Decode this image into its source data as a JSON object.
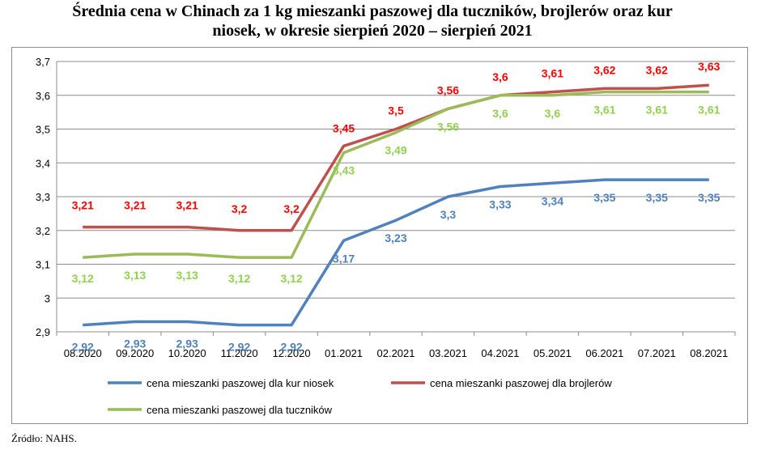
{
  "title_line1": "Średnia cena w Chinach za 1 kg mieszanki paszowej dla tuczników, brojlerów oraz kur",
  "title_line2": "niosek, w okresie sierpień 2020 – sierpień 2021",
  "source": "Źródło: NAHS.",
  "chart_data": {
    "type": "line",
    "categories": [
      "08.2020",
      "09.2020",
      "10.2020",
      "11.2020",
      "12.2020",
      "01.2021",
      "02.2021",
      "03.2021",
      "04.2021",
      "05.2021",
      "06.2021",
      "07.2021",
      "08.2021"
    ],
    "ylim": [
      2.9,
      3.7
    ],
    "yticks": [
      "2,9",
      "3",
      "3,1",
      "3,2",
      "3,3",
      "3,4",
      "3,5",
      "3,6",
      "3,7"
    ],
    "grid": true,
    "legend_position": "bottom",
    "series": [
      {
        "name": "cena mieszanki paszowej dla kur niosek",
        "color": "#4f81bd",
        "values": [
          2.92,
          2.93,
          2.93,
          2.92,
          2.92,
          3.17,
          3.23,
          3.3,
          3.33,
          3.34,
          3.35,
          3.35,
          3.35
        ],
        "labels": [
          "2,92",
          "2,93",
          "2,93",
          "2,92",
          "2,92",
          "3,17",
          "3,23",
          "3,3",
          "3,33",
          "3,34",
          "3,35",
          "3,35",
          "3,35"
        ]
      },
      {
        "name": "cena mieszanki paszowej dla brojlerów",
        "color": "#c0504d",
        "values": [
          3.21,
          3.21,
          3.21,
          3.2,
          3.2,
          3.45,
          3.5,
          3.56,
          3.6,
          3.61,
          3.62,
          3.62,
          3.63
        ],
        "labels": [
          "3,21",
          "3,21",
          "3,21",
          "3,2",
          "3,2",
          "3,45",
          "3,5",
          "3,56",
          "3,6",
          "3,61",
          "3,62",
          "3,62",
          "3,63"
        ]
      },
      {
        "name": "cena mieszanki paszowej dla tuczników",
        "color": "#9bbb59",
        "values": [
          3.12,
          3.13,
          3.13,
          3.12,
          3.12,
          3.43,
          3.49,
          3.56,
          3.6,
          3.6,
          3.61,
          3.61,
          3.61
        ],
        "labels": [
          "3,12",
          "3,13",
          "3,13",
          "3,12",
          "3,12",
          "3,43",
          "3,49",
          "3,56",
          "3,6",
          "3,6",
          "3,61",
          "3,61",
          "3,61"
        ]
      }
    ]
  }
}
